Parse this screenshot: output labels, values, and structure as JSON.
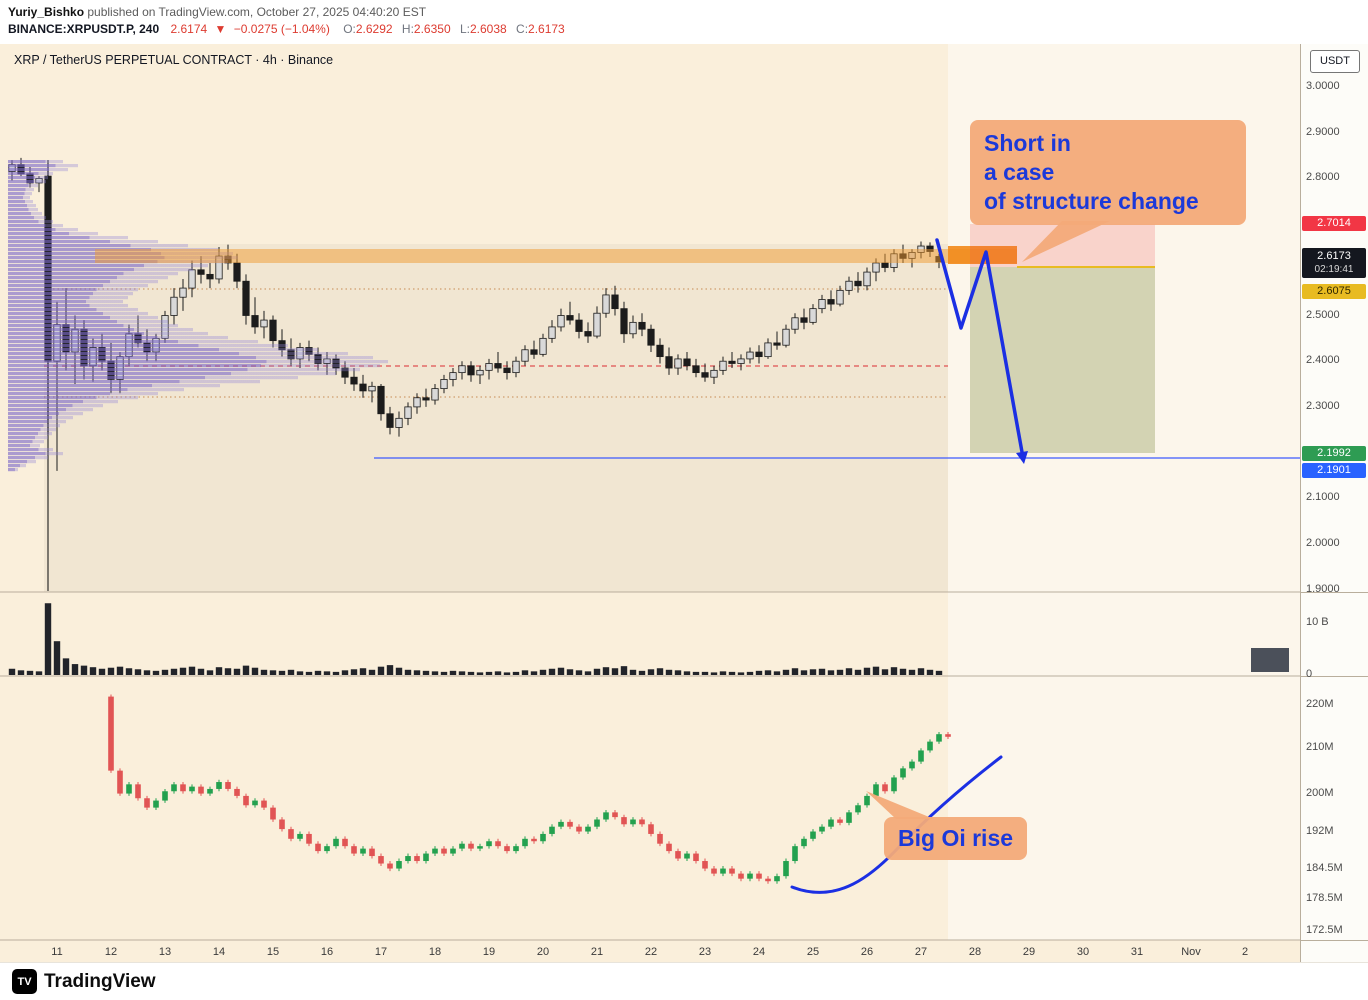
{
  "header": {
    "publisher": "Yuriy_Bishko",
    "published_text": " published on TradingView.com, October 27, 2025 04:40:20 EST",
    "symbol_line": {
      "symbol": "BINANCE:XRPUSDT.P, 240",
      "last": "2.6174",
      "arrow": "▼",
      "change": "−0.0275 (−1.04%)",
      "o_label": "O:",
      "o": "2.6292",
      "h_label": "H:",
      "h": "2.6350",
      "l_label": "L:",
      "l": "2.6038",
      "c_label": "C:",
      "c": "2.6173"
    }
  },
  "chart": {
    "title": "XRP / TetherUS PERPETUAL CONTRACT · 4h · Binance"
  },
  "axis": {
    "currency": "USDT",
    "price_labels": [
      "3.0000",
      "2.9000",
      "2.8000",
      "2.5000",
      "2.4000",
      "2.3000",
      "2.1000",
      "2.0000",
      "1.9000"
    ],
    "volume_labels": [
      "10 B",
      "0"
    ],
    "oi_labels": [
      "220M",
      "210M",
      "200M",
      "192M",
      "184.5M",
      "178.5M",
      "172.5M"
    ],
    "time_labels": [
      "11",
      "12",
      "13",
      "14",
      "15",
      "16",
      "17",
      "18",
      "19",
      "20",
      "21",
      "22",
      "23",
      "24",
      "25",
      "26",
      "27",
      "28",
      "29",
      "30",
      "31",
      "Nov",
      "2"
    ],
    "chips": {
      "stop": "2.7014",
      "last": "2.6173",
      "countdown": "02:19:41",
      "entry": "2.6075",
      "green": "2.1992",
      "blue": "2.1901"
    }
  },
  "annotations": {
    "short_note_lines": [
      "Short in",
      "a case",
      "of structure change"
    ],
    "oi_note": "Big Oi rise"
  },
  "footer": {
    "brand": "TradingView",
    "mark": "TV"
  },
  "colors": {
    "background": "#faefdb",
    "up_candle": "#d9d9d9",
    "down_candle": "#1c1c1c",
    "profile_purple": "#7b68c8",
    "band_orange": "#f09a30",
    "annotation_blue": "#1c39d9",
    "callout_bg": "#f3aa79",
    "stop_zone_red": "#f23645",
    "profit_zone_olive": "#7c883f",
    "last_label_bg": "#14171f",
    "entry_yellow": "#e8bb22",
    "level_green_label": "#2e9c53",
    "level_blue_label": "#2962ff",
    "oi_up": "#23a14f",
    "oi_down": "#e15454"
  },
  "chart_data": {
    "type": "candlestick+volume+open-interest",
    "symbol": "BINANCE:XRPUSDT.P",
    "timeframe": "4h (240)",
    "price_pane": {
      "ylim": [
        1.9,
        3.0
      ],
      "ohlc": [
        [
          2.815,
          2.84,
          2.795,
          2.83
        ],
        [
          2.83,
          2.845,
          2.805,
          2.81
        ],
        [
          2.81,
          2.825,
          2.78,
          2.79
        ],
        [
          2.79,
          2.805,
          2.77,
          2.8
        ],
        [
          2.805,
          2.815,
          2.24,
          2.4
        ],
        [
          2.4,
          2.53,
          2.16,
          2.48
        ],
        [
          2.48,
          2.56,
          2.38,
          2.42
        ],
        [
          2.42,
          2.5,
          2.35,
          2.47
        ],
        [
          2.47,
          2.49,
          2.36,
          2.39
        ],
        [
          2.39,
          2.45,
          2.355,
          2.43
        ],
        [
          2.43,
          2.46,
          2.38,
          2.4
        ],
        [
          2.4,
          2.44,
          2.33,
          2.36
        ],
        [
          2.36,
          2.42,
          2.33,
          2.41
        ],
        [
          2.41,
          2.48,
          2.39,
          2.46
        ],
        [
          2.46,
          2.5,
          2.43,
          2.44
        ],
        [
          2.44,
          2.47,
          2.4,
          2.42
        ],
        [
          2.42,
          2.46,
          2.4,
          2.45
        ],
        [
          2.45,
          2.51,
          2.44,
          2.5
        ],
        [
          2.5,
          2.56,
          2.48,
          2.54
        ],
        [
          2.54,
          2.58,
          2.51,
          2.56
        ],
        [
          2.56,
          2.62,
          2.54,
          2.6
        ],
        [
          2.6,
          2.63,
          2.57,
          2.59
        ],
        [
          2.59,
          2.615,
          2.56,
          2.58
        ],
        [
          2.58,
          2.65,
          2.57,
          2.63
        ],
        [
          2.63,
          2.655,
          2.6,
          2.615
        ],
        [
          2.615,
          2.635,
          2.56,
          2.575
        ],
        [
          2.575,
          2.59,
          2.48,
          2.5
        ],
        [
          2.5,
          2.54,
          2.46,
          2.475
        ],
        [
          2.475,
          2.51,
          2.45,
          2.49
        ],
        [
          2.49,
          2.5,
          2.43,
          2.445
        ],
        [
          2.445,
          2.47,
          2.41,
          2.425
        ],
        [
          2.425,
          2.45,
          2.39,
          2.405
        ],
        [
          2.405,
          2.44,
          2.385,
          2.43
        ],
        [
          2.43,
          2.445,
          2.4,
          2.415
        ],
        [
          2.415,
          2.43,
          2.38,
          2.395
        ],
        [
          2.395,
          2.42,
          2.37,
          2.405
        ],
        [
          2.405,
          2.415,
          2.37,
          2.385
        ],
        [
          2.385,
          2.4,
          2.35,
          2.365
        ],
        [
          2.365,
          2.385,
          2.335,
          2.35
        ],
        [
          2.35,
          2.37,
          2.32,
          2.335
        ],
        [
          2.335,
          2.355,
          2.31,
          2.345
        ],
        [
          2.345,
          2.35,
          2.27,
          2.285
        ],
        [
          2.285,
          2.3,
          2.24,
          2.255
        ],
        [
          2.255,
          2.29,
          2.235,
          2.275
        ],
        [
          2.275,
          2.31,
          2.26,
          2.3
        ],
        [
          2.3,
          2.33,
          2.285,
          2.32
        ],
        [
          2.32,
          2.34,
          2.3,
          2.315
        ],
        [
          2.315,
          2.35,
          2.305,
          2.34
        ],
        [
          2.34,
          2.37,
          2.33,
          2.36
        ],
        [
          2.36,
          2.385,
          2.345,
          2.375
        ],
        [
          2.375,
          2.4,
          2.36,
          2.39
        ],
        [
          2.39,
          2.4,
          2.355,
          2.37
        ],
        [
          2.37,
          2.39,
          2.35,
          2.38
        ],
        [
          2.38,
          2.405,
          2.36,
          2.395
        ],
        [
          2.395,
          2.42,
          2.375,
          2.385
        ],
        [
          2.385,
          2.4,
          2.36,
          2.375
        ],
        [
          2.375,
          2.41,
          2.365,
          2.4
        ],
        [
          2.4,
          2.435,
          2.39,
          2.425
        ],
        [
          2.425,
          2.445,
          2.405,
          2.415
        ],
        [
          2.415,
          2.46,
          2.41,
          2.45
        ],
        [
          2.45,
          2.49,
          2.44,
          2.475
        ],
        [
          2.475,
          2.515,
          2.465,
          2.5
        ],
        [
          2.5,
          2.53,
          2.48,
          2.49
        ],
        [
          2.49,
          2.505,
          2.45,
          2.465
        ],
        [
          2.465,
          2.485,
          2.44,
          2.455
        ],
        [
          2.455,
          2.52,
          2.45,
          2.505
        ],
        [
          2.505,
          2.56,
          2.495,
          2.545
        ],
        [
          2.545,
          2.565,
          2.5,
          2.515
        ],
        [
          2.515,
          2.53,
          2.44,
          2.46
        ],
        [
          2.46,
          2.5,
          2.45,
          2.485
        ],
        [
          2.485,
          2.505,
          2.455,
          2.47
        ],
        [
          2.47,
          2.48,
          2.42,
          2.435
        ],
        [
          2.435,
          2.45,
          2.395,
          2.41
        ],
        [
          2.41,
          2.43,
          2.37,
          2.385
        ],
        [
          2.385,
          2.415,
          2.37,
          2.405
        ],
        [
          2.405,
          2.42,
          2.38,
          2.39
        ],
        [
          2.39,
          2.405,
          2.365,
          2.375
        ],
        [
          2.375,
          2.395,
          2.355,
          2.365
        ],
        [
          2.365,
          2.39,
          2.35,
          2.38
        ],
        [
          2.38,
          2.41,
          2.37,
          2.4
        ],
        [
          2.4,
          2.42,
          2.385,
          2.395
        ],
        [
          2.395,
          2.415,
          2.38,
          2.405
        ],
        [
          2.405,
          2.43,
          2.395,
          2.42
        ],
        [
          2.42,
          2.435,
          2.395,
          2.41
        ],
        [
          2.41,
          2.45,
          2.405,
          2.44
        ],
        [
          2.44,
          2.465,
          2.425,
          2.435
        ],
        [
          2.435,
          2.48,
          2.43,
          2.47
        ],
        [
          2.47,
          2.505,
          2.46,
          2.495
        ],
        [
          2.495,
          2.515,
          2.47,
          2.485
        ],
        [
          2.485,
          2.525,
          2.48,
          2.515
        ],
        [
          2.515,
          2.545,
          2.505,
          2.535
        ],
        [
          2.535,
          2.555,
          2.51,
          2.525
        ],
        [
          2.525,
          2.565,
          2.52,
          2.555
        ],
        [
          2.555,
          2.585,
          2.545,
          2.575
        ],
        [
          2.575,
          2.595,
          2.55,
          2.565
        ],
        [
          2.565,
          2.605,
          2.555,
          2.595
        ],
        [
          2.595,
          2.625,
          2.575,
          2.615
        ],
        [
          2.615,
          2.635,
          2.595,
          2.605
        ],
        [
          2.605,
          2.645,
          2.595,
          2.635
        ],
        [
          2.635,
          2.655,
          2.615,
          2.625
        ],
        [
          2.625,
          2.645,
          2.605,
          2.638
        ],
        [
          2.638,
          2.662,
          2.625,
          2.652
        ],
        [
          2.652,
          2.66,
          2.628,
          2.64
        ],
        [
          2.6292,
          2.635,
          2.6038,
          2.6173
        ]
      ]
    },
    "volume_pane": {
      "unit": "B",
      "axis": [
        0,
        10
      ],
      "values": [
        1.2,
        0.9,
        0.8,
        0.7,
        13.8,
        6.5,
        3.2,
        2.1,
        1.8,
        1.5,
        1.2,
        1.4,
        1.6,
        1.3,
        1.1,
        0.9,
        0.8,
        1.0,
        1.2,
        1.4,
        1.6,
        1.2,
        0.9,
        1.5,
        1.3,
        1.2,
        1.8,
        1.4,
        1.0,
        0.9,
        0.8,
        1.0,
        0.7,
        0.6,
        0.8,
        0.7,
        0.6,
        0.9,
        1.1,
        1.3,
        1.0,
        1.6,
        1.9,
        1.4,
        1.0,
        0.9,
        0.8,
        0.7,
        0.6,
        0.8,
        0.7,
        0.6,
        0.5,
        0.6,
        0.7,
        0.5,
        0.6,
        0.9,
        0.7,
        1.0,
        1.2,
        1.4,
        1.1,
        0.9,
        0.7,
        1.2,
        1.5,
        1.3,
        1.7,
        1.0,
        0.8,
        1.1,
        1.3,
        1.0,
        0.9,
        0.7,
        0.6,
        0.6,
        0.5,
        0.7,
        0.6,
        0.5,
        0.6,
        0.8,
        0.9,
        0.7,
        1.0,
        1.3,
        0.9,
        1.1,
        1.2,
        0.9,
        1.0,
        1.3,
        1.0,
        1.4,
        1.6,
        1.1,
        1.5,
        1.2,
        1.0,
        1.3,
        1.0,
        0.8
      ]
    },
    "oi_pane": {
      "unit": "M",
      "axis_labels": [
        220,
        210,
        200,
        192,
        184.5,
        178.5,
        172.5
      ],
      "start_index": 11,
      "oc": [
        [
          222,
          205
        ],
        [
          205,
          200
        ],
        [
          200,
          202
        ],
        [
          202,
          199
        ],
        [
          199,
          197
        ],
        [
          197,
          198.5
        ],
        [
          198.5,
          200.5
        ],
        [
          200.5,
          202
        ],
        [
          202,
          200.5
        ],
        [
          200.5,
          201.5
        ],
        [
          201.5,
          200
        ],
        [
          200,
          201
        ],
        [
          201,
          202.5
        ],
        [
          202.5,
          201
        ],
        [
          201,
          199.5
        ],
        [
          199.5,
          197.5
        ],
        [
          197.5,
          198.5
        ],
        [
          198.5,
          197
        ],
        [
          197,
          194.5
        ],
        [
          194.5,
          192.5
        ],
        [
          192.5,
          190.5
        ],
        [
          190.5,
          191.5
        ],
        [
          191.5,
          189.5
        ],
        [
          189.5,
          188
        ],
        [
          188,
          189
        ],
        [
          189,
          190.5
        ],
        [
          190.5,
          189
        ],
        [
          189,
          187.5
        ],
        [
          187.5,
          188.5
        ],
        [
          188.5,
          187
        ],
        [
          187,
          185.5
        ],
        [
          185.5,
          184.5
        ],
        [
          184.5,
          186
        ],
        [
          186,
          187
        ],
        [
          187,
          186
        ],
        [
          186,
          187.5
        ],
        [
          187.5,
          188.5
        ],
        [
          188.5,
          187.5
        ],
        [
          187.5,
          188.5
        ],
        [
          188.5,
          189.5
        ],
        [
          189.5,
          188.5
        ],
        [
          188.5,
          189
        ],
        [
          189,
          190
        ],
        [
          190,
          189
        ],
        [
          189,
          188
        ],
        [
          188,
          189
        ],
        [
          189,
          190.5
        ],
        [
          190.5,
          190
        ],
        [
          190,
          191.5
        ],
        [
          191.5,
          193
        ],
        [
          193,
          194
        ],
        [
          194,
          193
        ],
        [
          193,
          192
        ],
        [
          192,
          193
        ],
        [
          193,
          194.5
        ],
        [
          194.5,
          196
        ],
        [
          196,
          195
        ],
        [
          195,
          193.5
        ],
        [
          193.5,
          194.5
        ],
        [
          194.5,
          193.5
        ],
        [
          193.5,
          191.5
        ],
        [
          191.5,
          189.5
        ],
        [
          189.5,
          188
        ],
        [
          188,
          186.5
        ],
        [
          186.5,
          187.5
        ],
        [
          187.5,
          186
        ],
        [
          186,
          184.5
        ],
        [
          184.5,
          183.5
        ],
        [
          183.5,
          184.5
        ],
        [
          184.5,
          183.5
        ],
        [
          183.5,
          182.5
        ],
        [
          182.5,
          183.5
        ],
        [
          183.5,
          182.5
        ],
        [
          182.5,
          182
        ],
        [
          182,
          183
        ],
        [
          183,
          186
        ],
        [
          186,
          189
        ],
        [
          189,
          190.5
        ],
        [
          190.5,
          192
        ],
        [
          192,
          193
        ],
        [
          193,
          194.5
        ],
        [
          194.5,
          193.8
        ],
        [
          193.8,
          196
        ],
        [
          196,
          197.5
        ],
        [
          197.5,
          199.5
        ],
        [
          199.5,
          202
        ],
        [
          202,
          200.5
        ],
        [
          200.5,
          203.5
        ],
        [
          203.5,
          205.5
        ],
        [
          205.5,
          207
        ],
        [
          207,
          209.5
        ],
        [
          209.5,
          211.5
        ],
        [
          211.5,
          213.2
        ],
        [
          213.2,
          212.6
        ]
      ]
    },
    "volume_profile": {
      "price_top": 2.84,
      "price_bottom": 2.17,
      "rows": [
        55,
        70,
        60,
        45,
        40,
        38,
        30,
        26,
        24,
        22,
        25,
        28,
        30,
        34,
        38,
        45,
        55,
        70,
        90,
        120,
        150,
        180,
        210,
        225,
        230,
        220,
        200,
        185,
        170,
        160,
        150,
        140,
        130,
        125,
        120,
        115,
        120,
        130,
        140,
        150,
        160,
        170,
        185,
        200,
        220,
        250,
        280,
        310,
        340,
        365,
        380,
        372,
        352,
        328,
        290,
        252,
        212,
        176,
        150,
        130,
        110,
        95,
        85,
        75,
        65,
        58,
        52,
        48,
        44,
        40,
        36,
        32,
        45,
        55,
        40,
        28,
        18,
        10
      ]
    },
    "levels": {
      "red_dashed_price": 2.389,
      "dotted_prices": [
        2.556,
        2.322
      ],
      "blue_ray_price": 2.1901,
      "orange_zone": [
        2.605,
        2.635
      ],
      "short_tool": {
        "entry": 2.6075,
        "stop": 2.7014,
        "target": 2.2
      }
    }
  }
}
